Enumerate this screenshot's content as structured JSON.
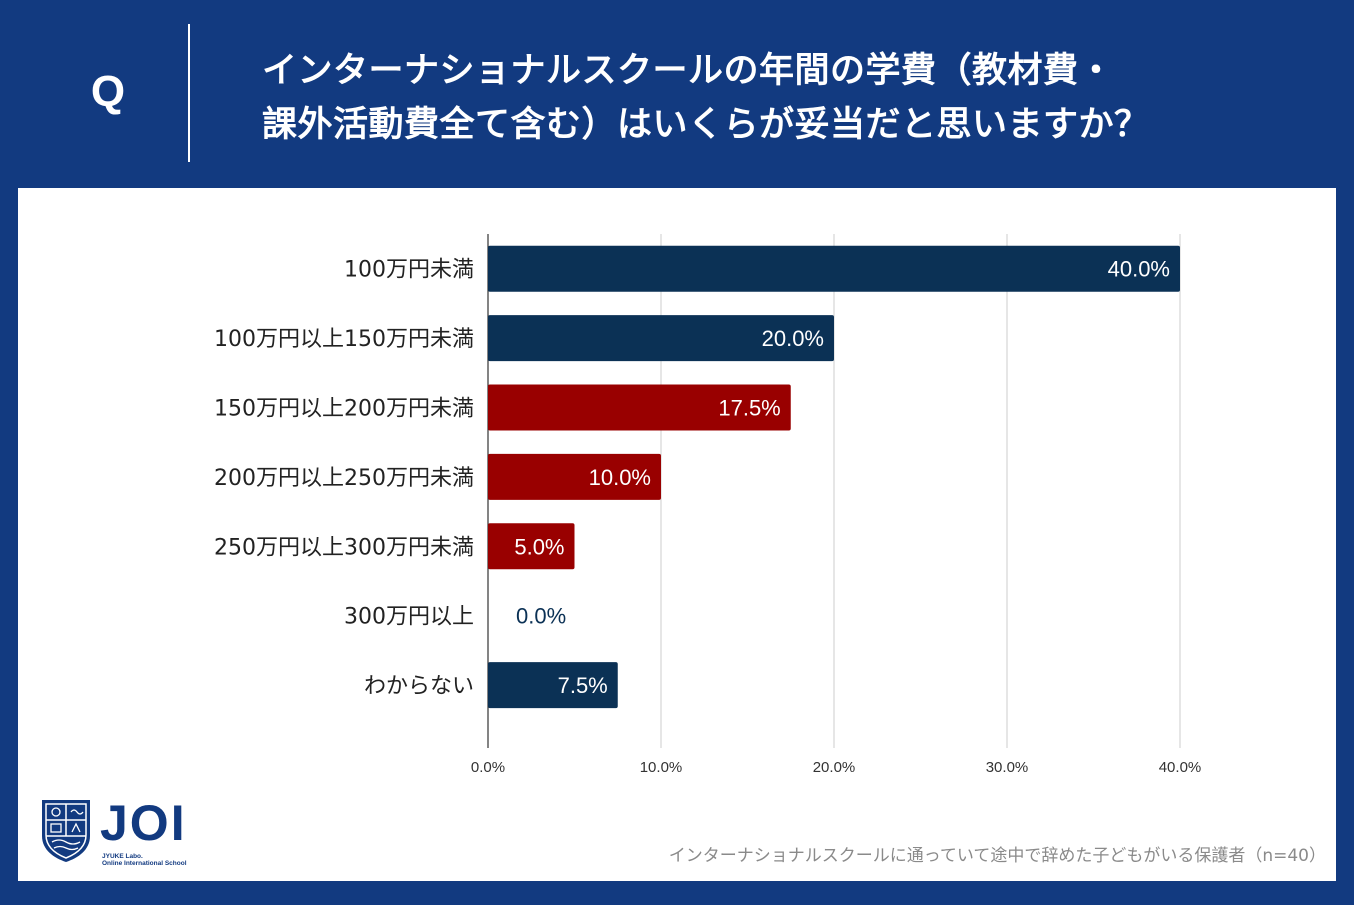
{
  "header": {
    "q_label": "Q",
    "question_line1": "インターナショナルスクールの年間の学費（教材費・",
    "question_line2": "課外活動費全て含む）はいくらが妥当だと思いますか？"
  },
  "colors": {
    "header_bg": "#123a80",
    "bar_blue": "#0b3155",
    "bar_red": "#990000",
    "grid": "#cccccc"
  },
  "chart_data": {
    "type": "bar",
    "orientation": "horizontal",
    "title": "",
    "xlabel": "",
    "ylabel": "",
    "xlim": [
      0,
      40
    ],
    "x_ticks": [
      "0.0%",
      "10.0%",
      "20.0%",
      "30.0%",
      "40.0%"
    ],
    "grid": true,
    "categories": [
      "100万円未満",
      "100万円以上150万円未満",
      "150万円以上200万円未満",
      "200万円以上250万円未満",
      "250万円以上300万円未満",
      "300万円以上",
      "わからない"
    ],
    "values": [
      40.0,
      20.0,
      17.5,
      10.0,
      5.0,
      0.0,
      7.5
    ],
    "value_labels": [
      "40.0%",
      "20.0%",
      "17.5%",
      "10.0%",
      "5.0%",
      "0.0%",
      "7.5%"
    ],
    "bar_colors": [
      "#0b3155",
      "#0b3155",
      "#990000",
      "#990000",
      "#990000",
      "#0b3155",
      "#0b3155"
    ]
  },
  "logo": {
    "name": "JOI",
    "subtitle1": "JYUKE Labo.",
    "subtitle2": "Online International School"
  },
  "footnote": "インターナショナルスクールに通っていて途中で辞めた子どもがいる保護者（n=40）"
}
